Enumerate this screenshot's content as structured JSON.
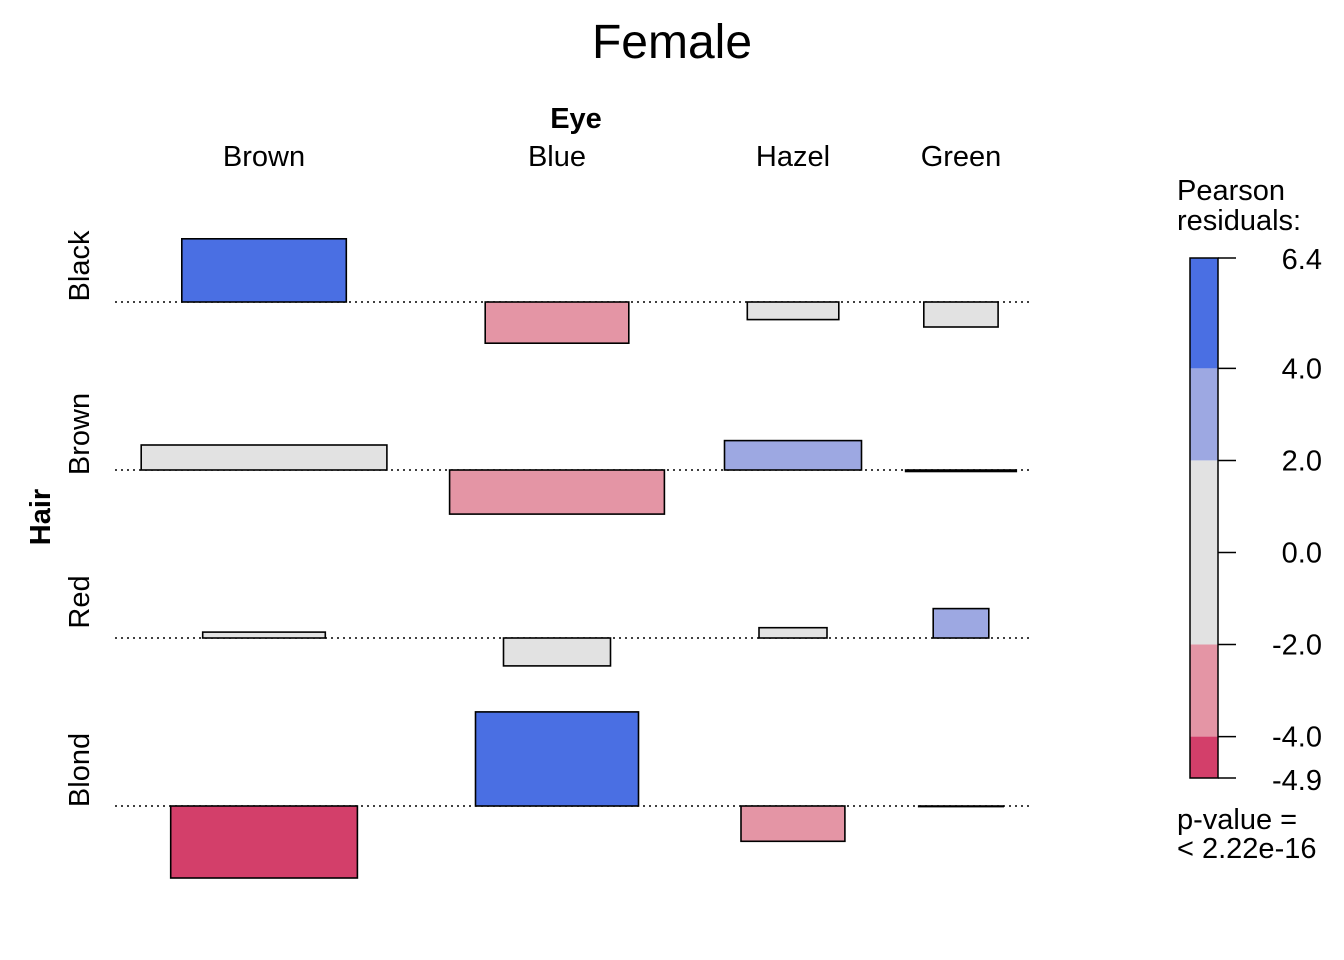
{
  "chart_data": {
    "type": "association",
    "title": "Female",
    "column_variable": "Eye",
    "row_variable": "Hair",
    "columns": [
      "Brown",
      "Blue",
      "Hazel",
      "Green"
    ],
    "rows": [
      "Black",
      "Brown",
      "Red",
      "Blond"
    ],
    "cells": [
      [
        {
          "residual": 4.3,
          "expected": 33.3
        },
        {
          "residual": -2.8,
          "expected": 25.4
        },
        {
          "residual": -1.2,
          "expected": 10.3
        },
        {
          "residual": -1.7,
          "expected": 6.8
        }
      ],
      [
        {
          "residual": 1.7,
          "expected": 74.3
        },
        {
          "residual": -3.0,
          "expected": 56.8
        },
        {
          "residual": 2.0,
          "expected": 23.1
        },
        {
          "residual": -0.1,
          "expected": 15.1
        }
      ],
      [
        {
          "residual": 0.4,
          "expected": 18.5
        },
        {
          "residual": -1.9,
          "expected": 14.1
        },
        {
          "residual": 0.7,
          "expected": 5.7
        },
        {
          "residual": 2.0,
          "expected": 3.8
        }
      ],
      [
        {
          "residual": -4.9,
          "expected": 42.9
        },
        {
          "residual": 6.4,
          "expected": 32.7
        },
        {
          "residual": -2.4,
          "expected": 13.3
        },
        {
          "residual": 0.0,
          "expected": 8.8
        }
      ]
    ],
    "legend": {
      "title_line1": "Pearson",
      "title_line2": "residuals:",
      "range": [
        -4.9,
        6.4
      ],
      "ticks": [
        {
          "value": 6.4,
          "label": "6.4"
        },
        {
          "value": 4.0,
          "label": "4.0"
        },
        {
          "value": 2.0,
          "label": "2.0"
        },
        {
          "value": 0.0,
          "label": "0.0"
        },
        {
          "value": -2.0,
          "label": "-2.0"
        },
        {
          "value": -4.0,
          "label": "-4.0"
        },
        {
          "value": -4.9,
          "label": "-4.9"
        }
      ],
      "bands": [
        {
          "from": 4.0,
          "to": 6.4,
          "color": "#4A6FE3"
        },
        {
          "from": 2.0,
          "to": 4.0,
          "color": "#9DA8E2"
        },
        {
          "from": -2.0,
          "to": 2.0,
          "color": "#E2E2E2"
        },
        {
          "from": -4.0,
          "to": -2.0,
          "color": "#E495A5"
        },
        {
          "from": -4.9,
          "to": -4.0,
          "color": "#D33F6A"
        }
      ],
      "pvalue_line1": "p-value =",
      "pvalue_line2": "< 2.22e-16"
    }
  }
}
